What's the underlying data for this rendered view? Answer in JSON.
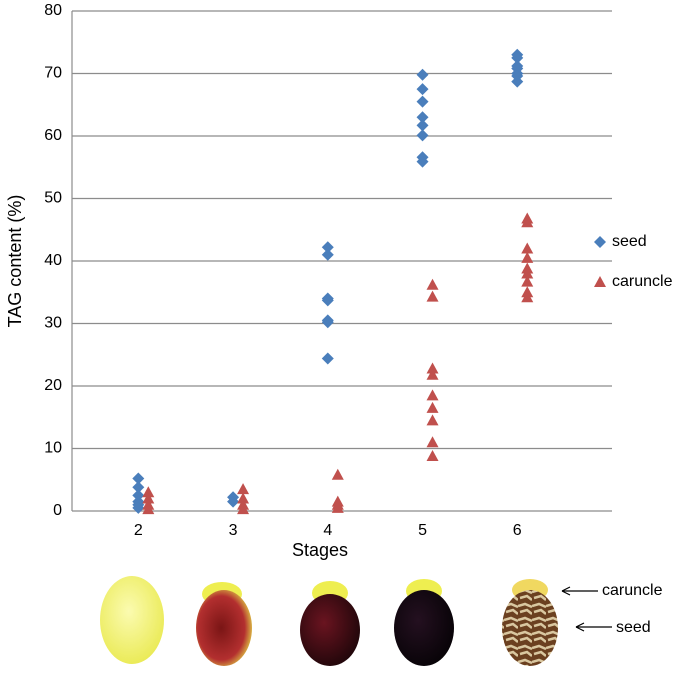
{
  "chart_data": {
    "type": "scatter",
    "x_label": "Stages",
    "y_label": "TAG content (%)",
    "xlim": [
      1.3,
      7
    ],
    "xticks": [
      2,
      3,
      4,
      5,
      6
    ],
    "ylim": [
      0,
      80
    ],
    "yticks": [
      0,
      10,
      20,
      30,
      40,
      50,
      60,
      70,
      80
    ],
    "grid": true,
    "legend": "right",
    "series": [
      {
        "name": "seed",
        "color": "#4a7ebb",
        "marker": "diamond",
        "x": [
          2,
          2,
          2,
          2,
          2,
          2,
          3,
          3,
          4,
          4,
          4,
          4,
          4,
          4,
          4,
          5,
          5,
          5,
          5,
          5,
          5,
          5,
          5,
          6,
          6,
          6,
          6,
          6,
          6,
          6
        ],
        "values": [
          5.2,
          3.8,
          2.5,
          1.5,
          1.0,
          0.5,
          2.2,
          1.5,
          42.2,
          41.0,
          34.0,
          33.7,
          30.5,
          30.2,
          24.4,
          69.8,
          67.5,
          65.5,
          63.0,
          61.7,
          60.1,
          56.6,
          55.9,
          73.0,
          72.5,
          71.2,
          70.8,
          70.0,
          69.6,
          68.7
        ]
      },
      {
        "name": "caruncle",
        "color": "#c0504d",
        "marker": "triangle",
        "x": [
          2,
          2,
          2,
          2,
          3,
          3,
          3,
          3,
          4,
          4,
          4,
          4,
          5,
          5,
          5,
          5,
          5,
          5,
          5,
          5,
          5,
          6,
          6,
          6,
          6,
          6,
          6,
          6,
          6,
          6
        ],
        "values": [
          3.0,
          2.0,
          1.0,
          0.3,
          3.5,
          2.0,
          1.0,
          0.3,
          5.8,
          1.5,
          1.0,
          0.5,
          36.2,
          34.3,
          22.8,
          21.8,
          18.5,
          16.5,
          14.5,
          11.0,
          8.8,
          46.8,
          46.2,
          42.0,
          40.5,
          38.8,
          38.0,
          36.7,
          35.0,
          34.2
        ]
      }
    ]
  },
  "photo_labels": [
    "caruncle",
    "seed"
  ]
}
